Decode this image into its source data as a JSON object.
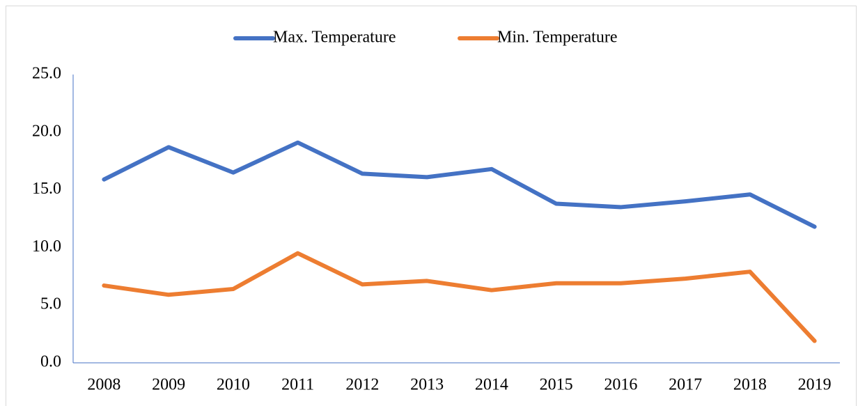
{
  "chart_data": {
    "type": "line",
    "categories": [
      "2008",
      "2009",
      "2010",
      "2011",
      "2012",
      "2013",
      "2014",
      "2015",
      "2016",
      "2017",
      "2018",
      "2019"
    ],
    "series": [
      {
        "name": "Max. Temperature",
        "color": "#4472c4",
        "values": [
          15.9,
          18.7,
          16.5,
          19.1,
          16.4,
          16.1,
          16.8,
          13.8,
          13.5,
          14.0,
          14.6,
          11.8
        ]
      },
      {
        "name": "Min. Temperature",
        "color": "#ed7d31",
        "values": [
          6.7,
          5.9,
          6.4,
          9.5,
          6.8,
          7.1,
          6.3,
          6.9,
          6.9,
          7.3,
          7.9,
          1.9
        ]
      }
    ],
    "ylim": [
      0,
      25
    ],
    "yticks": [
      {
        "value": 0,
        "label": "0.0"
      },
      {
        "value": 5,
        "label": "5.0"
      },
      {
        "value": 10,
        "label": "10.0"
      },
      {
        "value": 15,
        "label": "15.0"
      },
      {
        "value": 20,
        "label": "20.0"
      },
      {
        "value": 25,
        "label": "25.0"
      }
    ],
    "grid": false,
    "legend": "top"
  }
}
